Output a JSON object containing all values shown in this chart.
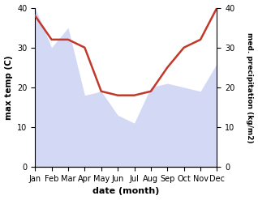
{
  "months": [
    "Jan",
    "Feb",
    "Mar",
    "Apr",
    "May",
    "Jun",
    "Jul",
    "Aug",
    "Sep",
    "Oct",
    "Nov",
    "Dec"
  ],
  "month_indices": [
    0,
    1,
    2,
    3,
    4,
    5,
    6,
    7,
    8,
    9,
    10,
    11
  ],
  "max_temp": [
    40,
    30,
    35,
    18,
    19,
    13,
    11,
    20,
    21,
    20,
    19,
    26
  ],
  "precipitation": [
    38,
    32,
    32,
    30,
    19,
    18,
    18,
    19,
    25,
    30,
    32,
    40
  ],
  "temp_ylim": [
    0,
    40
  ],
  "precip_ylim": [
    0,
    40
  ],
  "temp_yticks": [
    0,
    10,
    20,
    30,
    40
  ],
  "precip_yticks": [
    0,
    10,
    20,
    30,
    40
  ],
  "fill_color": "#b0b8ee",
  "fill_alpha": 0.55,
  "line_color": "#c0392b",
  "line_width": 1.8,
  "xlabel": "date (month)",
  "ylabel_left": "max temp (C)",
  "ylabel_right": "med. precipitation (kg/m2)",
  "bg_color": "#ffffff"
}
